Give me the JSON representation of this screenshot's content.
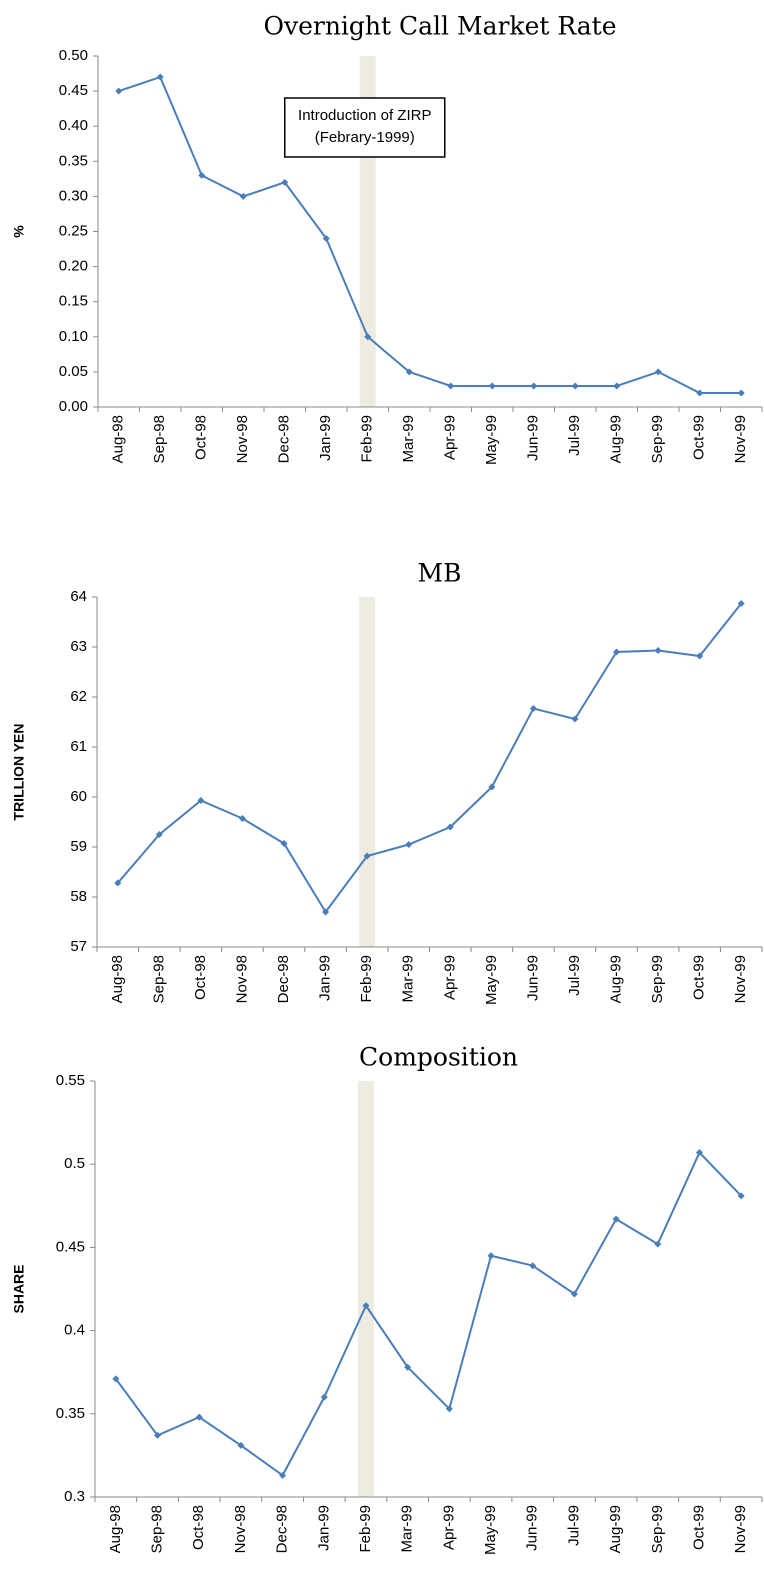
{
  "chart_data": [
    {
      "type": "line",
      "title": "Overnight Call Market Rate",
      "y_label": "%",
      "categories": [
        "Aug-98",
        "Sep-98",
        "Oct-98",
        "Nov-98",
        "Dec-98",
        "Jan-99",
        "Feb-99",
        "Mar-99",
        "Apr-99",
        "May-99",
        "Jun-99",
        "Jul-99",
        "Aug-99",
        "Sep-99",
        "Oct-99",
        "Nov-99"
      ],
      "values": [
        0.45,
        0.47,
        0.33,
        0.3,
        0.32,
        0.24,
        0.1,
        0.05,
        0.03,
        0.03,
        0.03,
        0.03,
        0.03,
        0.05,
        0.02,
        0.02
      ],
      "color": "#4a7ebb",
      "ylim": [
        0,
        0.5
      ],
      "yticks": [
        {
          "value": 0,
          "label": "0.00"
        },
        {
          "value": 0.05,
          "label": "0.05"
        },
        {
          "value": 0.1,
          "label": "0.10"
        },
        {
          "value": 0.15,
          "label": "0.15"
        },
        {
          "value": 0.2,
          "label": "0.20"
        },
        {
          "value": 0.25,
          "label": "0.25"
        },
        {
          "value": 0.3,
          "label": "0.30"
        },
        {
          "value": 0.35,
          "label": "0.35"
        },
        {
          "value": 0.4,
          "label": "0.40"
        },
        {
          "value": 0.45,
          "label": "0.45"
        },
        {
          "value": 0.5,
          "label": "0.50"
        }
      ],
      "highlight": "Feb-99",
      "highlight_color": "#eeebe0",
      "annotation": [
        "Introduction of ZIRP",
        "(Febrary-1999)"
      ]
    },
    {
      "type": "line",
      "title": "MB",
      "y_label": "TRILLION YEN",
      "categories": [
        "Aug-98",
        "Sep-98",
        "Oct-98",
        "Nov-98",
        "Dec-98",
        "Jan-99",
        "Feb-99",
        "Mar-99",
        "Apr-99",
        "May-99",
        "Jun-99",
        "Jul-99",
        "Aug-99",
        "Sep-99",
        "Oct-99",
        "Nov-99"
      ],
      "values": [
        58.28,
        59.25,
        59.93,
        59.57,
        59.07,
        57.7,
        58.82,
        59.05,
        59.4,
        60.2,
        61.77,
        61.56,
        62.9,
        62.93,
        62.82,
        63.87
      ],
      "color": "#4a7ebb",
      "ylim": [
        57,
        64
      ],
      "yticks": [
        57,
        58,
        59,
        60,
        61,
        62,
        63,
        64
      ],
      "highlight": "Feb-99",
      "highlight_color": "#eeebe0"
    },
    {
      "type": "line",
      "title": "Composition",
      "y_label": "SHARE",
      "categories": [
        "Aug-98",
        "Sep-98",
        "Oct-98",
        "Nov-98",
        "Dec-98",
        "Jan-99",
        "Feb-99",
        "Mar-99",
        "Apr-99",
        "May-99",
        "Jun-99",
        "Jul-99",
        "Aug-99",
        "Sep-99",
        "Oct-99",
        "Nov-99"
      ],
      "values": [
        0.371,
        0.337,
        0.348,
        0.331,
        0.313,
        0.36,
        0.415,
        0.378,
        0.353,
        0.445,
        0.439,
        0.422,
        0.467,
        0.452,
        0.507,
        0.481
      ],
      "color": "#4a7ebb",
      "ylim": [
        0.3,
        0.55
      ],
      "yticks": [
        0.3,
        0.35,
        0.4,
        0.45,
        0.5,
        0.55
      ],
      "highlight": "Feb-99",
      "highlight_color": "#eeebe0"
    }
  ]
}
